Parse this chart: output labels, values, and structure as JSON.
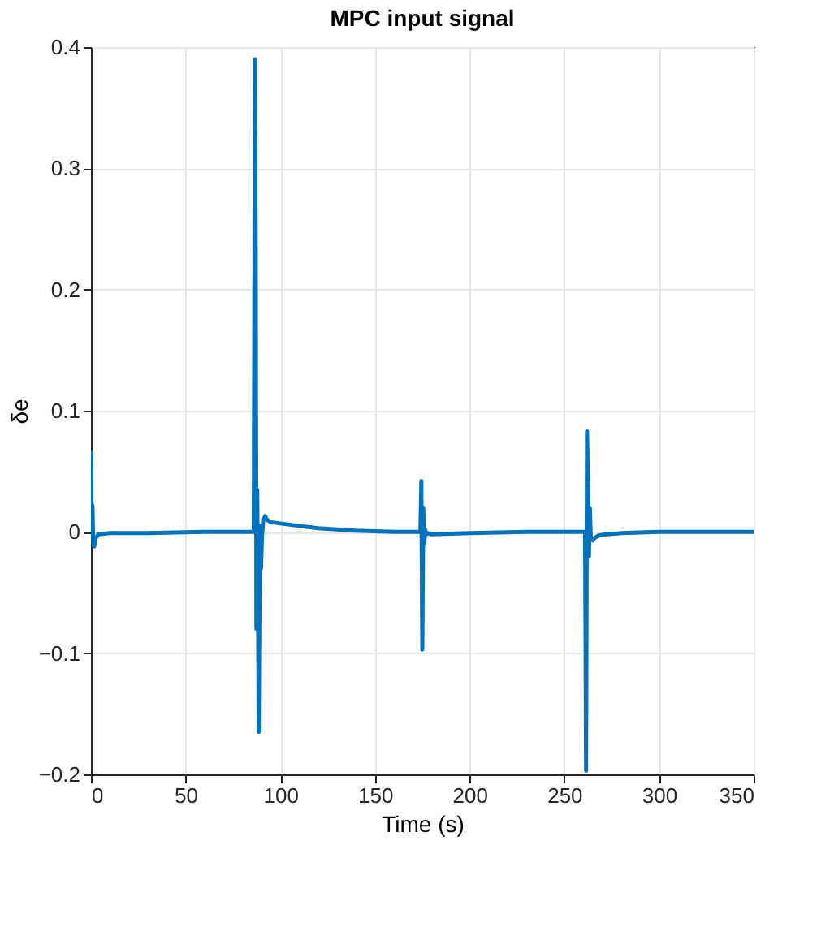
{
  "chart_data": {
    "type": "line",
    "title": "MPC input signal",
    "xlabel": "Time (s)",
    "ylabel": "δe",
    "series": [
      {
        "color": "#0072bd",
        "x": [
          0,
          0.3,
          0.8,
          1.2,
          1.7,
          2.5,
          4,
          10,
          30,
          60,
          86,
          86.6,
          87,
          87.4,
          87.8,
          88.2,
          88.6,
          89,
          89.4,
          89.8,
          90.3,
          91,
          92,
          93,
          95,
          100,
          110,
          120,
          140,
          160,
          174,
          174.5,
          175,
          175.5,
          176,
          176.5,
          177,
          178,
          180,
          200,
          230,
          261,
          261.5,
          262,
          262.5,
          263,
          263.5,
          264,
          265,
          266,
          268,
          272,
          280,
          300,
          330,
          350
        ],
        "values": [
          0.067,
          0.02,
          0.022,
          -0.01,
          -0.012,
          -0.005,
          -0.002,
          -0.001,
          -0.001,
          0,
          0,
          0.39,
          0.25,
          -0.08,
          0.035,
          -0.04,
          -0.165,
          -0.06,
          0.005,
          -0.03,
          -0.005,
          0.01,
          0.013,
          0.01,
          0.008,
          0.007,
          0.005,
          0.003,
          0.001,
          0,
          0,
          0.042,
          -0.097,
          0.02,
          -0.01,
          0.002,
          -0.002,
          -0.001,
          -0.002,
          -0.001,
          0,
          0,
          -0.197,
          0.083,
          0.04,
          -0.02,
          0.02,
          -0.005,
          -0.007,
          -0.005,
          -0.003,
          -0.002,
          -0.001,
          0,
          0,
          0
        ]
      }
    ],
    "xlim": [
      0,
      350
    ],
    "xticks": [
      0,
      50,
      100,
      150,
      200,
      250,
      300,
      350
    ],
    "ylim": [
      -0.2,
      0.4
    ],
    "yticks": [
      -0.2,
      -0.1,
      0,
      0.1,
      0.2,
      0.3,
      0.4
    ],
    "grid": true,
    "marker": "none",
    "line_style": "solid"
  }
}
